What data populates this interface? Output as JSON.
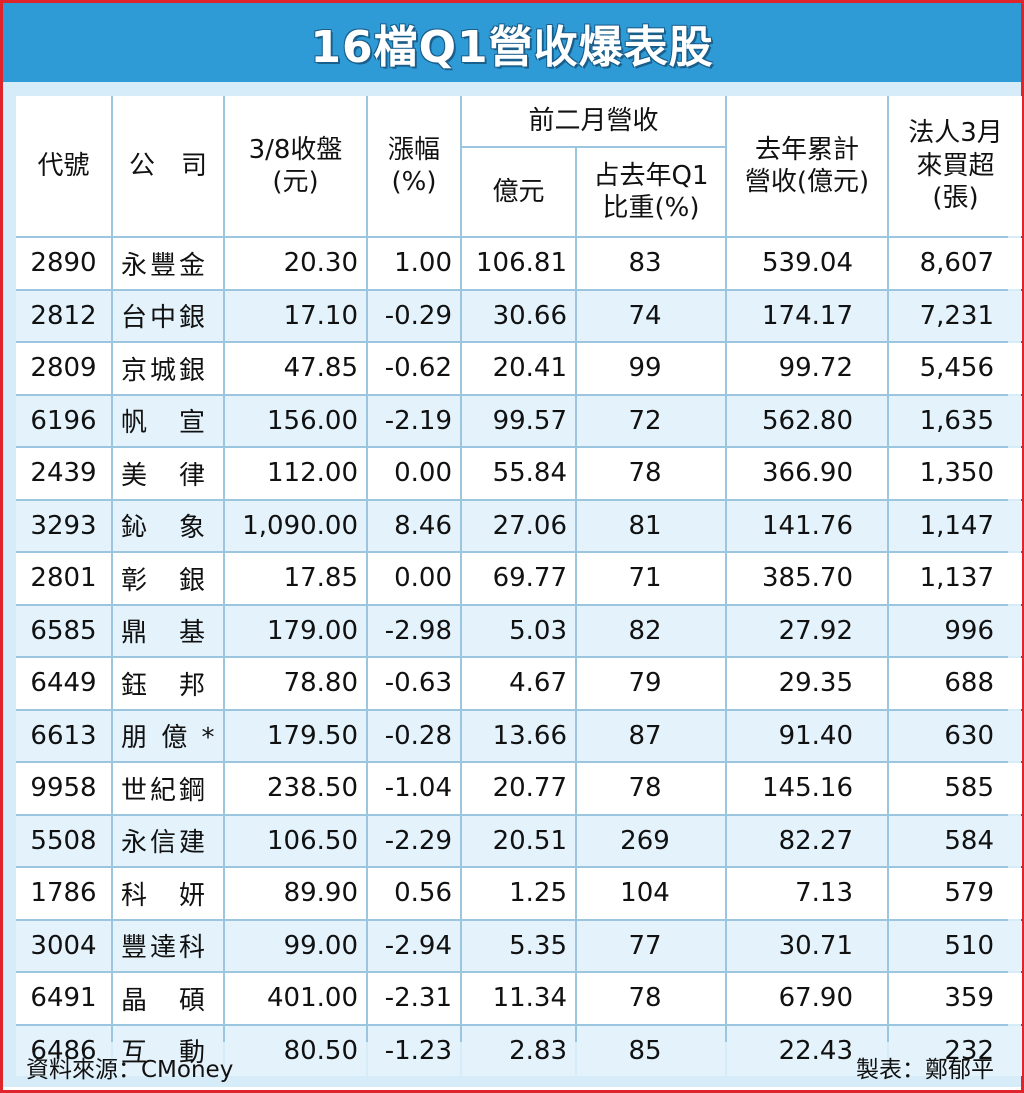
{
  "title": "16檔Q1營收爆表股",
  "colors": {
    "border": "#e0242b",
    "title_bar": "#2f9bd6",
    "panel": "#d6ecf8",
    "row_alt": "#e3f2fb"
  },
  "headers": {
    "code": "代號",
    "company": "公　司",
    "close": "3/8收盤\n(元)",
    "change": "漲幅\n(%)",
    "rev_group": "前二月營收",
    "rev_amount": "億元",
    "rev_share": "占去年Q1\n比重(%)",
    "prev_year_rev": "去年累計\n營收(億元)",
    "inst_buy": "法人3月\n來買超\n(張)"
  },
  "rows": [
    [
      "2890",
      "永豐金",
      "20.30",
      "1.00",
      "106.81",
      "83",
      "539.04",
      "8,607"
    ],
    [
      "2812",
      "台中銀",
      "17.10",
      "-0.29",
      "30.66",
      "74",
      "174.17",
      "7,231"
    ],
    [
      "2809",
      "京城銀",
      "47.85",
      "-0.62",
      "20.41",
      "99",
      "99.72",
      "5,456"
    ],
    [
      "6196",
      "帆　宣",
      "156.00",
      "-2.19",
      "99.57",
      "72",
      "562.80",
      "1,635"
    ],
    [
      "2439",
      "美　律",
      "112.00",
      "0.00",
      "55.84",
      "78",
      "366.90",
      "1,350"
    ],
    [
      "3293",
      "鈊　象",
      "1,090.00",
      "8.46",
      "27.06",
      "81",
      "141.76",
      "1,147"
    ],
    [
      "2801",
      "彰　銀",
      "17.85",
      "0.00",
      "69.77",
      "71",
      "385.70",
      "1,137"
    ],
    [
      "6585",
      "鼎　基",
      "179.00",
      "-2.98",
      "5.03",
      "82",
      "27.92",
      "996"
    ],
    [
      "6449",
      "鈺　邦",
      "78.80",
      "-0.63",
      "4.67",
      "79",
      "29.35",
      "688"
    ],
    [
      "6613",
      "朋 億 *",
      "179.50",
      "-0.28",
      "13.66",
      "87",
      "91.40",
      "630"
    ],
    [
      "9958",
      "世紀鋼",
      "238.50",
      "-1.04",
      "20.77",
      "78",
      "145.16",
      "585"
    ],
    [
      "5508",
      "永信建",
      "106.50",
      "-2.29",
      "20.51",
      "269",
      "82.27",
      "584"
    ],
    [
      "1786",
      "科　妍",
      "89.90",
      "0.56",
      "1.25",
      "104",
      "7.13",
      "579"
    ],
    [
      "3004",
      "豐達科",
      "99.00",
      "-2.94",
      "5.35",
      "77",
      "30.71",
      "510"
    ],
    [
      "6491",
      "晶　碩",
      "401.00",
      "-2.31",
      "11.34",
      "78",
      "67.90",
      "359"
    ],
    [
      "6486",
      "互　動",
      "80.50",
      "-1.23",
      "2.83",
      "85",
      "22.43",
      "232"
    ]
  ],
  "footer": {
    "source": "資料來源：CMoney",
    "maker": "製表：鄭郁平"
  }
}
